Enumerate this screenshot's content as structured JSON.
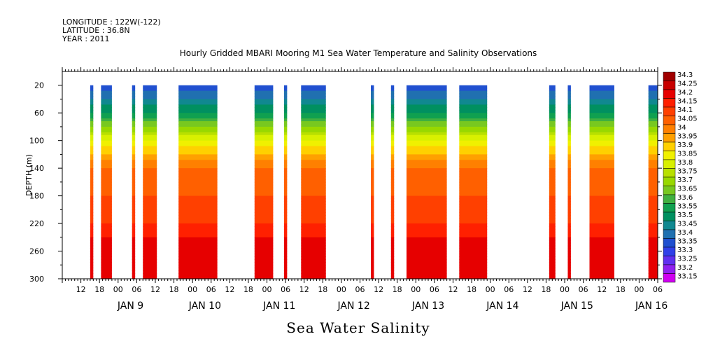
{
  "header": {
    "line1": "LONGITUDE : 122W(-122)",
    "line2": "LATITUDE : 36.8N",
    "line3": "YEAR : 2011"
  },
  "chart_data": {
    "type": "heatmap",
    "title": "Hourly Gridded MBARI Mooring M1 Sea Water Temperature and Salinity Observations",
    "xlabel": "Sea Water Salinity",
    "ylabel": "DEPTH (m)",
    "ylim": [
      300,
      0
    ],
    "yticks": [
      20,
      60,
      100,
      140,
      180,
      220,
      260,
      300
    ],
    "xrange_hours": [
      0,
      192
    ],
    "hour_tick_labels": [
      "12",
      "18",
      "00",
      "06",
      "12",
      "18",
      "00",
      "06",
      "12",
      "18",
      "00",
      "06",
      "12",
      "18",
      "00",
      "06",
      "12",
      "18",
      "00",
      "06",
      "12",
      "18",
      "00",
      "06",
      "12",
      "18",
      "00",
      "06",
      "12",
      "18",
      "00",
      "06"
    ],
    "day_labels": [
      "JAN  9",
      "JAN 10",
      "JAN 11",
      "JAN 12",
      "JAN 13",
      "JAN 14",
      "JAN 15",
      "JAN 16"
    ],
    "colorbar_levels": [
      "34.3",
      "34.25",
      "34.2",
      "34.15",
      "34.1",
      "34.05",
      "34",
      "33.95",
      "33.9",
      "33.85",
      "33.8",
      "33.75",
      "33.7",
      "33.65",
      "33.6",
      "33.55",
      "33.5",
      "33.45",
      "33.4",
      "33.35",
      "33.3",
      "33.25",
      "33.2",
      "33.15"
    ],
    "colorbar_colors": [
      "#a00000",
      "#c80000",
      "#e60000",
      "#ff2000",
      "#ff4000",
      "#ff6000",
      "#ff8000",
      "#ffa000",
      "#ffd000",
      "#f0f000",
      "#d8f000",
      "#b8e000",
      "#98d800",
      "#78c820",
      "#40b040",
      "#10a050",
      "#009060",
      "#108890",
      "#2070b0",
      "#2050d0",
      "#3040e8",
      "#6030f0",
      "#9020f0",
      "#d000f0"
    ],
    "profile_depths": [
      20,
      60,
      100,
      140,
      180,
      220,
      260,
      300
    ],
    "profile_values": [
      33.35,
      33.55,
      33.85,
      34.05,
      34.1,
      34.15,
      34.25,
      34.2
    ],
    "data_segments_hours": [
      [
        9,
        10
      ],
      [
        12.5,
        16
      ],
      [
        22.5,
        23.5
      ],
      [
        26,
        30.5
      ],
      [
        37.5,
        50
      ],
      [
        62,
        68
      ],
      [
        71.5,
        72.5
      ],
      [
        77,
        85
      ],
      [
        99.5,
        100.5
      ],
      [
        106,
        107
      ],
      [
        111,
        124
      ],
      [
        128,
        137
      ],
      [
        157,
        159
      ],
      [
        163,
        164
      ],
      [
        170,
        178
      ],
      [
        189,
        192
      ]
    ]
  }
}
